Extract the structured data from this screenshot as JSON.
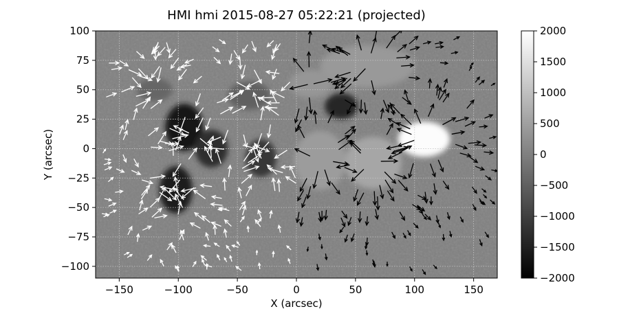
{
  "chart_data": {
    "type": "heatmap",
    "title": "HMI hmi 2015-08-27 05:22:21 (projected)",
    "xlabel": "X (arcsec)",
    "ylabel": "Y (arcsec)",
    "xlim": [
      -170,
      170
    ],
    "ylim": [
      -110,
      100
    ],
    "xticks": [
      -150,
      -100,
      -50,
      0,
      50,
      100,
      150
    ],
    "yticks": [
      100,
      75,
      50,
      25,
      0,
      -25,
      -50,
      -75,
      -100
    ],
    "grid": true,
    "colorbar": {
      "range": [
        -2000,
        2000
      ],
      "ticks": [
        2000,
        1500,
        1000,
        500,
        0,
        -500,
        -1000,
        -1500,
        -2000
      ],
      "tick_labels": [
        "2000",
        "1500",
        "1000",
        "500",
        "0",
        "−500",
        "−1000",
        "−1500",
        "−2000"
      ],
      "colormap": "gray",
      "placement": "right"
    },
    "background_value": 0,
    "regions": [
      {
        "polarity": "negative",
        "x": -95,
        "y": 18,
        "rx": 16,
        "ry": 20,
        "value": -1700
      },
      {
        "polarity": "negative",
        "x": -102,
        "y": -35,
        "rx": 14,
        "ry": 20,
        "value": -1600
      },
      {
        "polarity": "negative",
        "x": -72,
        "y": 0,
        "rx": 14,
        "ry": 16,
        "value": -1300
      },
      {
        "polarity": "negative",
        "x": -30,
        "y": -8,
        "rx": 13,
        "ry": 16,
        "value": -1100
      },
      {
        "polarity": "negative",
        "x": 38,
        "y": 36,
        "rx": 14,
        "ry": 11,
        "value": -1400
      },
      {
        "polarity": "negative",
        "x": -40,
        "y": 45,
        "rx": 18,
        "ry": 12,
        "value": -500
      },
      {
        "polarity": "negative",
        "x": -120,
        "y": 50,
        "rx": 15,
        "ry": 10,
        "value": -400
      },
      {
        "polarity": "positive",
        "x": 108,
        "y": 8,
        "rx": 22,
        "ry": 15,
        "value": 1950
      },
      {
        "polarity": "positive",
        "x": 65,
        "y": -12,
        "rx": 24,
        "ry": 22,
        "value": 600
      },
      {
        "polarity": "positive",
        "x": 20,
        "y": -10,
        "rx": 22,
        "ry": 25,
        "value": 450
      },
      {
        "polarity": "positive",
        "x": 60,
        "y": 70,
        "rx": 40,
        "ry": 18,
        "value": 400
      },
      {
        "polarity": "positive",
        "x": 12,
        "y": 55,
        "rx": 18,
        "ry": 12,
        "value": 350
      }
    ],
    "vector_colors": {
      "negative_region": "#ffffff",
      "positive_region": "#000000"
    }
  }
}
